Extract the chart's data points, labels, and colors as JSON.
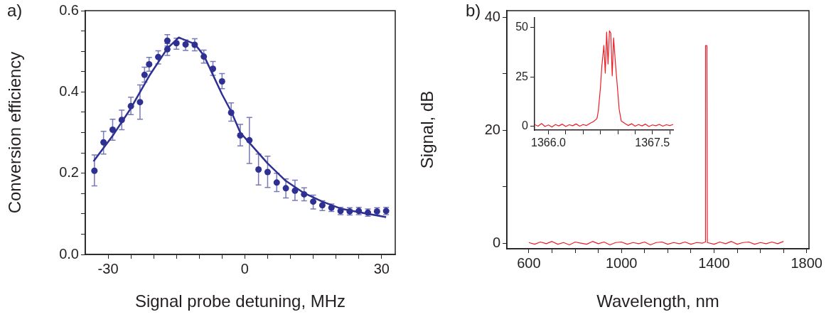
{
  "chart_data": [
    {
      "type": "scatter",
      "xlabel": "Signal probe detuning, MHz",
      "ylabel": "Conversion efficiency",
      "annotations": [
        "a)"
      ],
      "xlim": [
        -35,
        33
      ],
      "ylim": [
        0,
        0.6
      ],
      "xticks": [
        -30,
        {
          "value": -25,
          "label": null
        },
        {
          "value": -20,
          "label": null
        },
        {
          "value": -15,
          "label": null
        },
        {
          "value": -10,
          "label": null
        },
        {
          "value": -5,
          "label": null
        },
        0,
        {
          "value": 5,
          "label": null
        },
        {
          "value": 10,
          "label": null
        },
        {
          "value": 15,
          "label": null
        },
        {
          "value": 20,
          "label": null
        },
        {
          "value": 25,
          "label": null
        },
        30
      ],
      "yticks": [
        {
          "value": 0,
          "label": "0.0"
        },
        {
          "value": 0.05,
          "label": null
        },
        {
          "value": 0.1,
          "label": null
        },
        {
          "value": 0.15,
          "label": null
        },
        0.2,
        {
          "value": 0.25,
          "label": null
        },
        {
          "value": 0.3,
          "label": null
        },
        {
          "value": 0.35,
          "label": null
        },
        0.4,
        {
          "value": 0.45,
          "label": null
        },
        {
          "value": 0.5,
          "label": null
        },
        {
          "value": 0.55,
          "label": null
        },
        0.6
      ],
      "grid": false,
      "legend": false,
      "series": [
        {
          "type": "scatter",
          "marker": "circle",
          "color": "#2e3192",
          "x": [
            -33,
            -31,
            -29,
            -27,
            -25,
            -23,
            -22,
            -21,
            -19,
            -17,
            -17,
            -15,
            -13,
            -11,
            -9,
            -7,
            -5,
            -3,
            -1,
            1,
            3,
            5,
            7,
            9,
            11,
            13,
            15,
            17,
            19,
            21,
            23,
            25,
            27,
            29,
            31
          ],
          "values": [
            0.206,
            0.276,
            0.307,
            0.331,
            0.365,
            0.375,
            0.442,
            0.468,
            0.486,
            0.505,
            0.526,
            0.52,
            0.517,
            0.516,
            0.487,
            0.457,
            0.426,
            0.349,
            0.293,
            0.281,
            0.209,
            0.203,
            0.177,
            0.163,
            0.157,
            0.148,
            0.13,
            0.121,
            0.115,
            0.107,
            0.106,
            0.107,
            0.103,
            0.106,
            0.107
          ],
          "errors": [
            [
              0.169,
              0.245
            ],
            [
              0.247,
              0.303
            ],
            [
              0.281,
              0.333
            ],
            [
              0.307,
              0.355
            ],
            [
              0.344,
              0.387
            ],
            [
              0.333,
              0.417
            ],
            [
              0.424,
              0.461
            ],
            [
              0.451,
              0.485
            ],
            [
              0.469,
              0.501
            ],
            [
              0.49,
              0.519
            ],
            [
              0.513,
              0.541
            ],
            [
              0.505,
              0.532
            ],
            [
              0.502,
              0.528
            ],
            [
              0.501,
              0.531
            ],
            [
              0.471,
              0.503
            ],
            [
              0.441,
              0.475
            ],
            [
              0.408,
              0.445
            ],
            [
              0.328,
              0.373
            ],
            [
              0.267,
              0.32
            ],
            [
              0.224,
              0.337
            ],
            [
              0.171,
              0.247
            ],
            [
              0.165,
              0.242
            ],
            [
              0.155,
              0.2
            ],
            [
              0.139,
              0.186
            ],
            [
              0.133,
              0.183
            ],
            [
              0.132,
              0.164
            ],
            [
              0.112,
              0.146
            ],
            [
              0.108,
              0.132
            ],
            [
              0.106,
              0.124
            ],
            [
              0.098,
              0.116
            ],
            [
              0.097,
              0.115
            ],
            [
              0.098,
              0.116
            ],
            [
              0.094,
              0.112
            ],
            [
              0.097,
              0.115
            ],
            [
              0.098,
              0.116
            ]
          ]
        },
        {
          "type": "line",
          "marker": "none",
          "color": "#2e3192",
          "x": [
            -33.2,
            -29,
            -25,
            -21,
            -17,
            -14.5,
            -11,
            -9,
            -5,
            -3,
            -1,
            1,
            5,
            9,
            13,
            17,
            21,
            25,
            31
          ],
          "values": [
            0.229,
            0.292,
            0.36,
            0.439,
            0.507,
            0.534,
            0.518,
            0.49,
            0.394,
            0.352,
            0.3,
            0.275,
            0.224,
            0.181,
            0.151,
            0.13,
            0.113,
            0.104,
            0.092
          ]
        }
      ]
    },
    {
      "type": "line",
      "xlabel": "Wavelength, nm",
      "ylabel": "Signal, dB",
      "annotations": [
        "b)"
      ],
      "xlim": [
        505,
        1810
      ],
      "ylim": [
        -1,
        41.2
      ],
      "xticks": [
        600,
        {
          "value": 700,
          "label": null
        },
        {
          "value": 800,
          "label": null
        },
        {
          "value": 900,
          "label": null
        },
        1000,
        {
          "value": 1100,
          "label": null
        },
        {
          "value": 1200,
          "label": null
        },
        {
          "value": 1300,
          "label": null
        },
        1400,
        {
          "value": 1500,
          "label": null
        },
        {
          "value": 1600,
          "label": null
        },
        {
          "value": 1700,
          "label": null
        },
        1800
      ],
      "yticks": [
        0,
        {
          "value": 10,
          "label": null
        },
        20,
        {
          "value": 30,
          "label": null
        },
        40
      ],
      "grid": false,
      "legend": false,
      "line_style": "solid",
      "series": [
        {
          "color": "#ed1c24",
          "x": [
            600,
            625,
            650,
            675,
            700,
            725,
            750,
            775,
            800,
            825,
            850,
            875,
            900,
            925,
            950,
            975,
            1000,
            1025,
            1050,
            1075,
            1100,
            1125,
            1150,
            1175,
            1200,
            1225,
            1250,
            1275,
            1300,
            1325,
            1350,
            1362,
            1363,
            1369,
            1371,
            1400,
            1425,
            1450,
            1475,
            1500,
            1525,
            1550,
            1575,
            1600,
            1625,
            1650,
            1675,
            1700
          ],
          "values": [
            0.1,
            -0.2,
            0.2,
            -0.1,
            0.3,
            -0.2,
            0.1,
            -0.3,
            0.2,
            0,
            -0.2,
            0.3,
            -0.1,
            0.2,
            -0.3,
            0.1,
            0.2,
            -0.2,
            0.1,
            -0.1,
            0.2,
            -0.3,
            0.1,
            0.2,
            -0.2,
            0.1,
            -0.1,
            0.2,
            -0.2,
            0.1,
            0,
            0.2,
            35,
            35,
            0.1,
            -0.2,
            0.2,
            -0.1,
            0.3,
            -0.2,
            0.1,
            0.2,
            -0.2,
            0.1,
            -0.1,
            0.2,
            -0.1,
            0.3
          ]
        }
      ]
    },
    {
      "type": "line",
      "xlim": [
        1365.8,
        1367.8
      ],
      "ylim": [
        -1.8,
        55
      ],
      "xticks": [
        {
          "value": 1366,
          "label": "1366.0"
        },
        {
          "value": 1366.25,
          "label": null
        },
        {
          "value": 1366.5,
          "label": null
        },
        {
          "value": 1366.75,
          "label": null
        },
        {
          "value": 1367,
          "label": null
        },
        {
          "value": 1367.25,
          "label": null
        },
        1367.5,
        {
          "value": 1367.75,
          "label": null
        }
      ],
      "yticks": [
        0,
        25,
        50
      ],
      "grid": false,
      "legend": false,
      "line_style": "solid",
      "series": [
        {
          "color": "#ed1c24",
          "x": [
            1365.8,
            1365.85,
            1365.9,
            1365.95,
            1366.0,
            1366.05,
            1366.1,
            1366.15,
            1366.2,
            1366.25,
            1366.3,
            1366.35,
            1366.4,
            1366.45,
            1366.5,
            1366.55,
            1366.6,
            1366.65,
            1366.7,
            1366.72,
            1366.75,
            1366.77,
            1366.8,
            1366.82,
            1366.84,
            1366.86,
            1366.88,
            1366.9,
            1366.92,
            1366.94,
            1366.97,
            1366.99,
            1367.02,
            1367.05,
            1367.1,
            1367.15,
            1367.2,
            1367.25,
            1367.3,
            1367.35,
            1367.4,
            1367.45,
            1367.5,
            1367.55,
            1367.6,
            1367.65,
            1367.7,
            1367.75,
            1367.8
          ],
          "values": [
            1,
            0.2,
            1.5,
            0,
            0.8,
            -0.3,
            1,
            0.3,
            1.2,
            0,
            0.9,
            0.4,
            1.3,
            0.2,
            1,
            0.5,
            1.6,
            2.5,
            4,
            8,
            19.6,
            30.4,
            41,
            27,
            47.8,
            31.6,
            48.4,
            47.2,
            25.6,
            44.8,
            30.4,
            22,
            8.8,
            2.8,
            1.6,
            0.5,
            1.4,
            0.2,
            1,
            0.3,
            1.2,
            0,
            0.8,
            0.4,
            1.1,
            0.2,
            0.9,
            0.5,
            1
          ]
        }
      ]
    }
  ]
}
